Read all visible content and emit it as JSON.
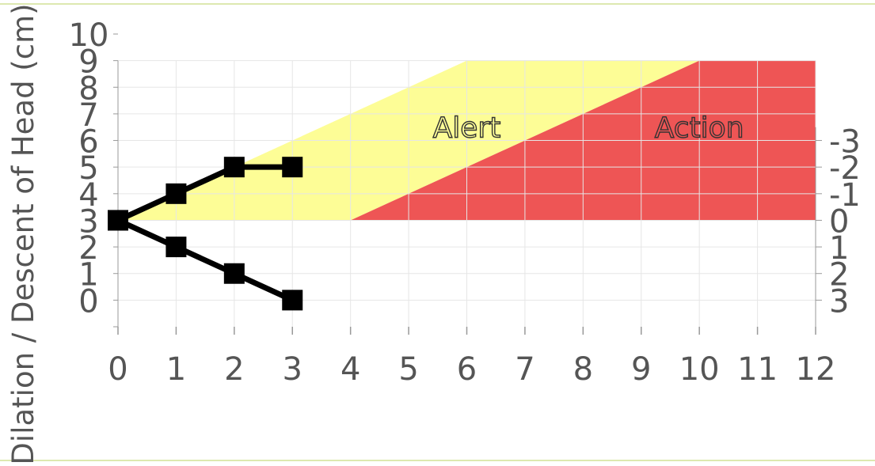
{
  "colors": {
    "frame": "#dde8b0",
    "alert_zone": "#fdfd96",
    "action_zone": "#ee5555",
    "series": "#000000",
    "grid": "#e6e6e6",
    "axis": "#999999",
    "text": "#555555"
  },
  "chart_data": {
    "type": "line",
    "title": "",
    "ylabel": "Dilation / Descent of Head (cm)",
    "xlabel": "",
    "xlim": [
      0,
      12
    ],
    "ylim": [
      -1,
      10
    ],
    "x_ticks": [
      "0",
      "1",
      "2",
      "3",
      "4",
      "5",
      "6",
      "7",
      "8",
      "9",
      "10",
      "11",
      "12"
    ],
    "y_ticks": [
      "0",
      "1",
      "2",
      "3",
      "4",
      "5",
      "6",
      "7",
      "8",
      "9",
      "10"
    ],
    "y2_ticks": [
      {
        "label": "-3",
        "at": 6
      },
      {
        "label": "-2",
        "at": 5
      },
      {
        "label": "-1",
        "at": 4
      },
      {
        "label": "0",
        "at": 3
      },
      {
        "label": "1",
        "at": 2
      },
      {
        "label": "2",
        "at": 1
      },
      {
        "label": "3",
        "at": 0
      }
    ],
    "grid": true,
    "series": [
      {
        "x": [
          0,
          1,
          2,
          3
        ],
        "values": [
          3,
          4,
          5,
          5
        ],
        "marker": "square"
      },
      {
        "x": [
          0,
          1,
          2,
          3
        ],
        "values": [
          3,
          2,
          1,
          0
        ],
        "marker": "square"
      }
    ],
    "zones": [
      {
        "label": "Alert",
        "polygon": [
          [
            0,
            3
          ],
          [
            6,
            9
          ],
          [
            10,
            9
          ],
          [
            4,
            3
          ]
        ],
        "label_at": [
          6,
          6.5
        ]
      },
      {
        "label": "Action",
        "polygon": [
          [
            4,
            3
          ],
          [
            10,
            9
          ],
          [
            12,
            9
          ],
          [
            12,
            3
          ]
        ],
        "label_at": [
          10,
          6.5
        ]
      }
    ]
  }
}
